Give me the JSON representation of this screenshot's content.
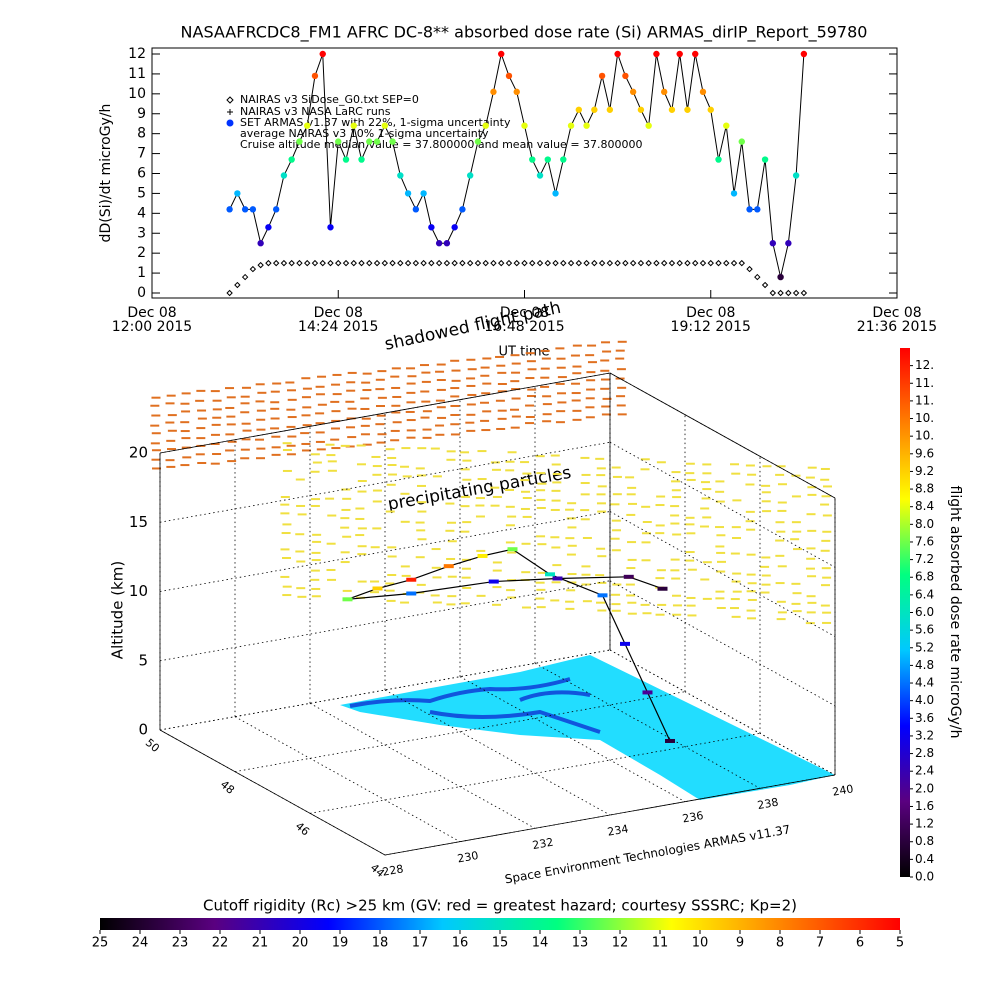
{
  "chart_data": [
    {
      "type": "line",
      "title": "NASAAFRCDC8_FM1 AFRC DC-8** absorbed dose rate (Si) ARMAS_dirIP_Report_59780",
      "ylabel": "dD(Si)/dt microGy/h",
      "xlabel": "UT time",
      "xlim": [
        12,
        21.6
      ],
      "xticks": [
        {
          "value": 12,
          "label": "Dec 08\n12:00 2015"
        },
        {
          "value": 14.4,
          "label": "Dec 08\n14:24 2015"
        },
        {
          "value": 16.8,
          "label": "Dec 08\n16:48 2015"
        },
        {
          "value": 19.2,
          "label": "Dec 08\n19:12 2015"
        },
        {
          "value": 21.6,
          "label": "Dec 08\n21:36 2015"
        }
      ],
      "ylim": [
        0,
        12
      ],
      "yticks": [
        0,
        1,
        2,
        3,
        4,
        5,
        6,
        7,
        8,
        9,
        10,
        11,
        12
      ],
      "legend_extra": [
        "NAIRAS v3 NASA LaRC runs",
        "average NAIRAS v3 10% 1-sigma uncertainty",
        "Cruise altitude median value = 37.800000 and mean value = 37.800000"
      ],
      "x": [
        13.0,
        13.1,
        13.2,
        13.3,
        13.4,
        13.5,
        13.6,
        13.7,
        13.8,
        13.9,
        14.0,
        14.1,
        14.2,
        14.3,
        14.4,
        14.5,
        14.6,
        14.7,
        14.8,
        14.9,
        15.0,
        15.1,
        15.2,
        15.3,
        15.4,
        15.5,
        15.6,
        15.7,
        15.8,
        15.9,
        16.0,
        16.1,
        16.2,
        16.3,
        16.4,
        16.5,
        16.6,
        16.7,
        16.8,
        16.9,
        17.0,
        17.1,
        17.2,
        17.3,
        17.4,
        17.5,
        17.6,
        17.7,
        17.8,
        17.9,
        18.0,
        18.1,
        18.2,
        18.3,
        18.4,
        18.5,
        18.6,
        18.7,
        18.8,
        18.9,
        19.0,
        19.1,
        19.2,
        19.3,
        19.4,
        19.5,
        19.6,
        19.7,
        19.8,
        19.9,
        20.0,
        20.1,
        20.2,
        20.3,
        20.4
      ],
      "series": [
        {
          "name": "NAIRAS v3 SiDose_G0.txt SEP=0",
          "marker": "diamond",
          "color": "#000000",
          "values": [
            0,
            0.4,
            0.8,
            1.2,
            1.4,
            1.5,
            1.5,
            1.5,
            1.5,
            1.5,
            1.5,
            1.5,
            1.5,
            1.5,
            1.5,
            1.5,
            1.5,
            1.5,
            1.5,
            1.5,
            1.5,
            1.5,
            1.5,
            1.5,
            1.5,
            1.5,
            1.5,
            1.5,
            1.5,
            1.5,
            1.5,
            1.5,
            1.5,
            1.5,
            1.5,
            1.5,
            1.5,
            1.5,
            1.5,
            1.5,
            1.5,
            1.5,
            1.5,
            1.5,
            1.5,
            1.5,
            1.5,
            1.5,
            1.5,
            1.5,
            1.5,
            1.5,
            1.5,
            1.5,
            1.5,
            1.5,
            1.5,
            1.5,
            1.5,
            1.5,
            1.5,
            1.5,
            1.5,
            1.5,
            1.5,
            1.5,
            1.5,
            1.2,
            0.8,
            0.4,
            0,
            0,
            0,
            0,
            0
          ]
        },
        {
          "name": "SET ARMAS v1.37 with 22%, 1-sigma uncertainty",
          "marker": "circle",
          "line": true,
          "values": [
            4.2,
            5.0,
            4.2,
            4.2,
            2.5,
            3.3,
            4.2,
            5.9,
            6.7,
            7.6,
            8.4,
            10.9,
            12,
            3.3,
            7.6,
            6.7,
            8.4,
            6.7,
            7.6,
            7.6,
            8.4,
            7.6,
            5.9,
            5.0,
            4.2,
            5.0,
            3.3,
            2.5,
            2.5,
            3.3,
            4.2,
            5.9,
            7.6,
            8.4,
            10.1,
            12,
            10.9,
            10.1,
            8.4,
            6.7,
            5.9,
            6.7,
            5.0,
            6.7,
            8.4,
            9.2,
            8.4,
            9.2,
            10.9,
            9.2,
            12,
            10.9,
            10.1,
            9.2,
            8.4,
            12,
            10.1,
            9.2,
            12,
            9.2,
            12,
            10.1,
            9.2,
            6.7,
            8.4,
            5.0,
            7.6,
            4.2,
            4.2,
            6.7,
            2.5,
            0.8,
            2.5,
            5.9,
            12
          ]
        }
      ]
    },
    {
      "type": "scatter3d",
      "zlabel": "Altitude (km)",
      "annotations": [
        "shadowed flight path",
        "precipitating particles",
        "Space Environment Technologies ARMAS v11.37"
      ],
      "xlim": [
        228,
        240
      ],
      "xticks": [
        228,
        230,
        232,
        234,
        236,
        238,
        240
      ],
      "ylim": [
        44,
        50
      ],
      "yticks": [
        44,
        46,
        48,
        50
      ],
      "zlim": [
        0,
        20
      ],
      "zticks": [
        0,
        5,
        10,
        15,
        20
      ],
      "x": [
        237.4,
        237.2,
        237.0,
        236.8,
        236.0,
        235.4,
        234.8,
        234.0,
        233.0,
        232.0,
        231.0,
        232.5,
        234.5,
        236.0,
        237.5,
        238.0
      ],
      "y": [
        45.8,
        46.2,
        46.6,
        47.0,
        47.6,
        48.0,
        48.2,
        48.3,
        48.3,
        48.2,
        48.0,
        47.8,
        47.6,
        47.4,
        47.0,
        46.6
      ],
      "z": [
        1.0,
        4.0,
        7.0,
        10.0,
        11.0,
        12.5,
        12.0,
        11.5,
        11.0,
        11.0,
        11.0,
        11.0,
        11.2,
        11.0,
        11.0,
        10.5
      ],
      "values": [
        0.8,
        2.0,
        3.2,
        4.4,
        6.0,
        7.6,
        8.8,
        10.4,
        11.6,
        9.2,
        7.6,
        4.4,
        3.2,
        2.4,
        1.2,
        0.8
      ],
      "colormap": [
        "#000000",
        "#5a0080",
        "#0000ff",
        "#00c8ff",
        "#00ff80",
        "#ffff00",
        "#ff8000",
        "#ff0000"
      ],
      "colorbar": {
        "label": "flight absorbed dose rate microGy/h",
        "lim": [
          0,
          12
        ],
        "ticks": [
          {
            "value": 0,
            "label": "0.0"
          },
          0.4,
          0.8,
          1.2,
          1.6,
          {
            "value": 2,
            "label": "2.0"
          },
          2.4,
          2.8,
          3.2,
          3.6,
          {
            "value": 4,
            "label": "4.0"
          },
          4.4,
          4.8,
          5.2,
          5.6,
          {
            "value": 6,
            "label": "6.0"
          },
          6.4,
          6.8,
          7.2,
          7.6,
          {
            "value": 8,
            "label": "8.0"
          },
          8.4,
          8.8,
          9.2,
          9.6,
          {
            "value": 10,
            "label": "10."
          },
          {
            "value": 10.4,
            "label": "10."
          },
          {
            "value": 10.8,
            "label": "11."
          },
          {
            "value": 11.2,
            "label": "11."
          },
          {
            "value": 11.6,
            "label": "12."
          }
        ]
      }
    },
    {
      "type": "colorbar",
      "title": "Cutoff rigidity (Rc) >25 km (GV: red = greatest hazard; courtesy SSSRC; Kp=2)",
      "xlim": [
        25,
        5
      ],
      "xticks": [
        25,
        24,
        23,
        22,
        21,
        20,
        19,
        18,
        17,
        16,
        15,
        14,
        13,
        12,
        11,
        10,
        9,
        8,
        7,
        6,
        5
      ]
    }
  ]
}
